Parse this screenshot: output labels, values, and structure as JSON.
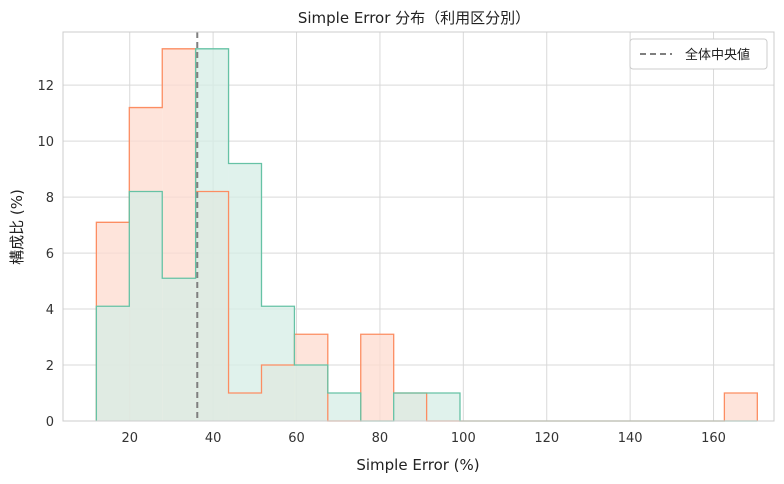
{
  "chart_data": {
    "type": "histogram",
    "title": "Simple Error 分布（利用区分別）",
    "xlabel": "Simple Error (%)",
    "ylabel": "構成比 (%)",
    "xlim": [
      4.0,
      174.5
    ],
    "ylim": [
      0,
      13.9
    ],
    "xticks": [
      20,
      40,
      60,
      80,
      100,
      120,
      140,
      160
    ],
    "yticks": [
      0,
      2,
      4,
      6,
      8,
      10,
      12
    ],
    "grid": true,
    "legend_position": "top-right",
    "bin_edges": [
      12.0,
      19.9,
      27.8,
      35.8,
      43.7,
      51.6,
      59.5,
      67.5,
      75.4,
      83.3,
      91.2,
      99.2,
      107.1,
      115.0,
      122.9,
      130.9,
      138.8,
      146.7,
      154.6,
      162.6,
      170.5
    ],
    "series": [
      {
        "values": [
          7.1,
          11.2,
          13.3,
          8.2,
          1.0,
          2.0,
          3.1,
          0,
          3.1,
          1.0,
          0,
          0,
          0,
          0,
          0,
          0,
          0,
          0,
          0,
          1.0
        ],
        "color": "#fc8d62",
        "fill": "#fddbcf"
      },
      {
        "values": [
          4.1,
          8.2,
          5.1,
          13.3,
          9.2,
          4.1,
          2.0,
          1.0,
          0,
          1.0,
          1.0,
          0,
          0,
          0,
          0,
          0,
          0,
          0,
          0,
          0
        ],
        "color": "#66c2a5",
        "fill": "#d6ede6"
      }
    ],
    "median_line": {
      "x": 36.2,
      "label": "全体中央値",
      "color": "#7f7f7f"
    }
  }
}
